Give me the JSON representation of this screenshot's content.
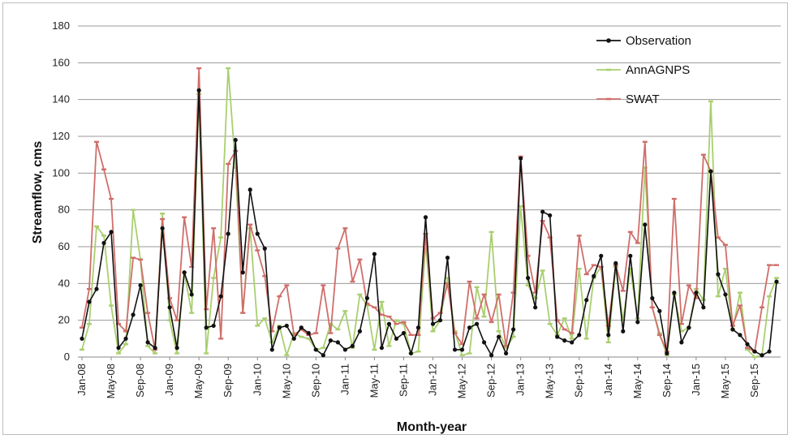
{
  "chart_data": {
    "type": "line",
    "xlabel": "Month-year",
    "ylabel": "Streamflow, cms",
    "ylim": [
      0,
      180
    ],
    "yticks": [
      0,
      20,
      40,
      60,
      80,
      100,
      120,
      140,
      160,
      180
    ],
    "grid": "horizontal",
    "legend_position": "top-right",
    "x_tick_labels": [
      "Jan-08",
      "May-08",
      "Sep-08",
      "Jan-09",
      "May-09",
      "Sep-09",
      "Jan-10",
      "May-10",
      "Sep-10",
      "Jan-11",
      "May-11",
      "Sep-11",
      "Jan-12",
      "May-12",
      "Sep-12",
      "Jan-13",
      "May-13",
      "Sep-13",
      "Jan-14",
      "May-14",
      "Sep-14",
      "Jan-15",
      "May-15",
      "Sep-15"
    ],
    "x_start": "Jan-08",
    "x_end": "Dec-15",
    "series": [
      {
        "name": "Observation",
        "color": "#111111",
        "marker": "circle",
        "values": [
          10,
          30,
          37,
          62,
          68,
          5,
          10,
          23,
          39,
          8,
          5,
          70,
          27,
          5,
          46,
          34,
          145,
          16,
          17,
          33,
          67,
          118,
          46,
          91,
          67,
          59,
          4,
          16,
          17,
          10,
          16,
          13,
          4,
          1,
          9,
          8,
          4,
          6,
          14,
          32,
          56,
          5,
          18,
          10,
          13,
          2,
          16,
          76,
          18,
          20,
          54,
          4,
          4,
          16,
          18,
          8,
          1,
          11,
          2,
          15,
          108,
          43,
          27,
          79,
          77,
          11,
          9,
          8,
          12,
          31,
          44,
          55,
          12,
          51,
          14,
          55,
          19,
          72,
          32,
          25,
          2,
          35,
          8,
          16,
          35,
          27,
          101,
          45,
          34,
          15,
          12,
          7,
          3,
          1,
          3,
          41
        ]
      },
      {
        "name": "AnnAGNPS",
        "color": "#a9cf6f",
        "marker": "dash",
        "values": [
          4,
          18,
          71,
          66,
          28,
          2,
          7,
          80,
          53,
          6,
          2,
          78,
          20,
          2,
          46,
          24,
          143,
          2,
          43,
          65,
          157,
          103,
          24,
          70,
          17,
          21,
          8,
          17,
          1,
          13,
          11,
          10,
          4,
          5,
          18,
          15,
          25,
          5,
          34,
          28,
          4,
          30,
          6,
          20,
          18,
          2,
          3,
          62,
          14,
          20,
          43,
          14,
          1,
          2,
          38,
          22,
          68,
          14,
          5,
          11,
          82,
          39,
          32,
          47,
          18,
          12,
          21,
          10,
          48,
          10,
          43,
          49,
          8,
          49,
          20,
          48,
          21,
          103,
          27,
          13,
          1,
          34,
          14,
          16,
          37,
          31,
          139,
          33,
          48,
          15,
          35,
          4,
          0,
          1,
          33,
          43
        ]
      },
      {
        "name": "SWAT",
        "color": "#d06e6a",
        "marker": "dash",
        "values": [
          16,
          37,
          117,
          102,
          86,
          18,
          14,
          54,
          53,
          24,
          4,
          75,
          32,
          20,
          76,
          49,
          157,
          26,
          70,
          10,
          105,
          112,
          24,
          72,
          58,
          44,
          14,
          33,
          39,
          12,
          15,
          12,
          13,
          39,
          13,
          59,
          70,
          41,
          53,
          29,
          27,
          23,
          22,
          18,
          19,
          12,
          12,
          67,
          21,
          24,
          40,
          13,
          7,
          41,
          21,
          34,
          19,
          34,
          6,
          35,
          109,
          55,
          35,
          74,
          65,
          20,
          15,
          13,
          66,
          45,
          50,
          49,
          17,
          50,
          36,
          68,
          62,
          117,
          27,
          12,
          3,
          86,
          18,
          39,
          32,
          110,
          101,
          65,
          61,
          17,
          28,
          5,
          3,
          27,
          50,
          50
        ]
      }
    ]
  }
}
